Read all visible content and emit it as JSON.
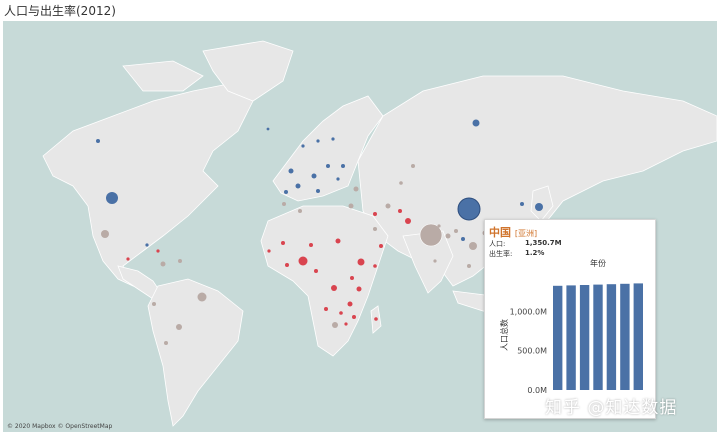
{
  "title": "人口与出生率(2012)",
  "attribution": "© 2020 Mapbox © OpenStreetMap",
  "colors": {
    "ocean": "#c7dad8",
    "land": "#e7e7e7",
    "high": "#4a71a6",
    "mid": "#b9aba6",
    "low": "#d9444f",
    "accent": "#d0742c"
  },
  "tooltip": {
    "country": "中国",
    "region": "[亚洲]",
    "population_label": "人口:",
    "population_value": "1,350.7M",
    "birthrate_label": "出生率:",
    "birthrate_value": "1.2%",
    "chart_title": "年份",
    "y_axis_label": "人口总数"
  },
  "chart_data": {
    "type": "bar",
    "title": "年份",
    "ylabel": "人口总数",
    "y_ticks": [
      "0.0M",
      "500.0M",
      "1,000.0M"
    ],
    "ylim": [
      0,
      1500
    ],
    "values": [
      1325,
      1330,
      1335,
      1340,
      1345,
      1350,
      1355
    ]
  },
  "watermark": "知乎 @知达数据"
}
